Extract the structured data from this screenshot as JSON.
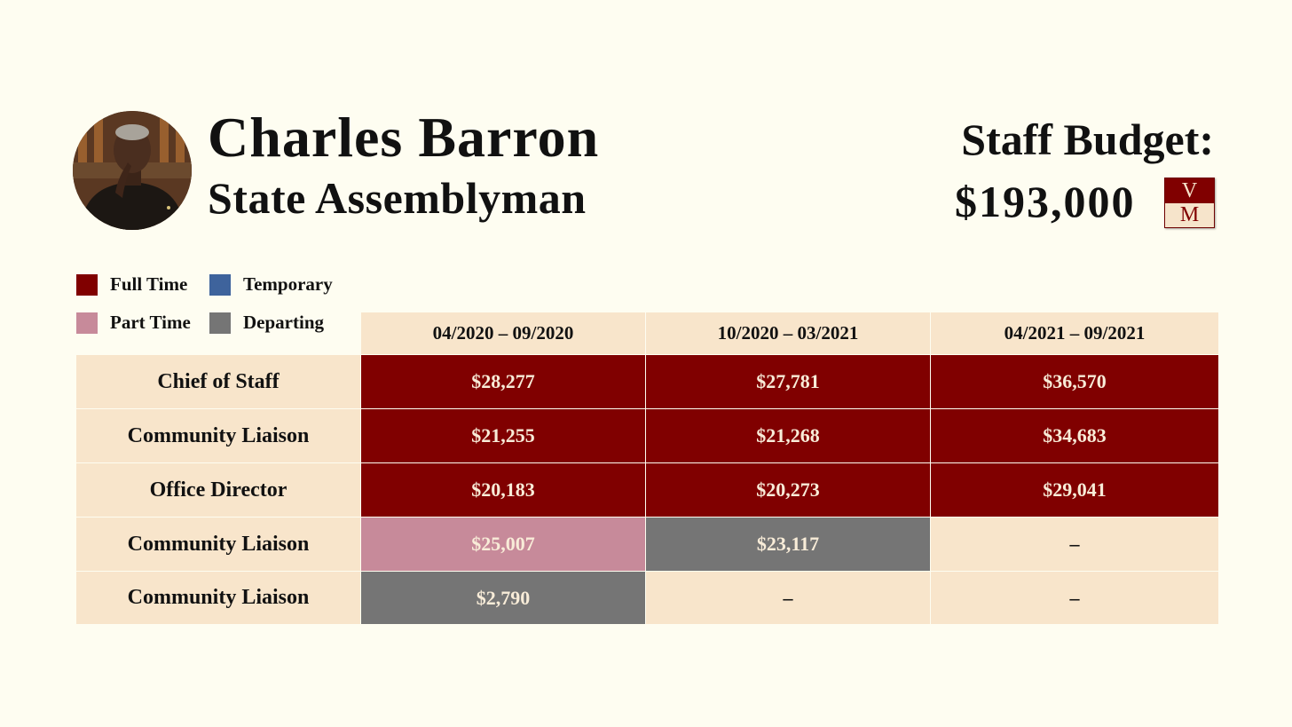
{
  "header": {
    "name": "Charles Barron",
    "title": "State Assemblyman",
    "budget_label": "Staff Budget:",
    "budget_amount": "$193,000",
    "logo": {
      "top": "V",
      "bottom": "M"
    }
  },
  "legend": [
    {
      "label": "Full Time",
      "color": "#800000"
    },
    {
      "label": "Temporary",
      "color": "#3e639c"
    },
    {
      "label": "Part Time",
      "color": "#c78a9a"
    },
    {
      "label": "Departing",
      "color": "#757575"
    }
  ],
  "table": {
    "columns": [
      "04/2020 – 09/2020",
      "10/2020 – 03/2021",
      "04/2021 – 09/2021"
    ],
    "rows": [
      {
        "role": "Chief of Staff",
        "cells": [
          {
            "value": "$28,277",
            "status": "full-time"
          },
          {
            "value": "$27,781",
            "status": "full-time"
          },
          {
            "value": "$36,570",
            "status": "full-time"
          }
        ]
      },
      {
        "role": "Community Liaison",
        "cells": [
          {
            "value": "$21,255",
            "status": "full-time"
          },
          {
            "value": "$21,268",
            "status": "full-time"
          },
          {
            "value": "$34,683",
            "status": "full-time"
          }
        ]
      },
      {
        "role": "Office Director",
        "cells": [
          {
            "value": "$20,183",
            "status": "full-time"
          },
          {
            "value": "$20,273",
            "status": "full-time"
          },
          {
            "value": "$29,041",
            "status": "full-time"
          }
        ]
      },
      {
        "role": "Community Liaison",
        "cells": [
          {
            "value": "$25,007",
            "status": "part-time"
          },
          {
            "value": "$23,117",
            "status": "departing"
          },
          {
            "value": "–",
            "status": "none"
          }
        ]
      },
      {
        "role": "Community Liaison",
        "cells": [
          {
            "value": "$2,790",
            "status": "departing"
          },
          {
            "value": "–",
            "status": "none"
          },
          {
            "value": "–",
            "status": "none"
          }
        ]
      }
    ]
  }
}
